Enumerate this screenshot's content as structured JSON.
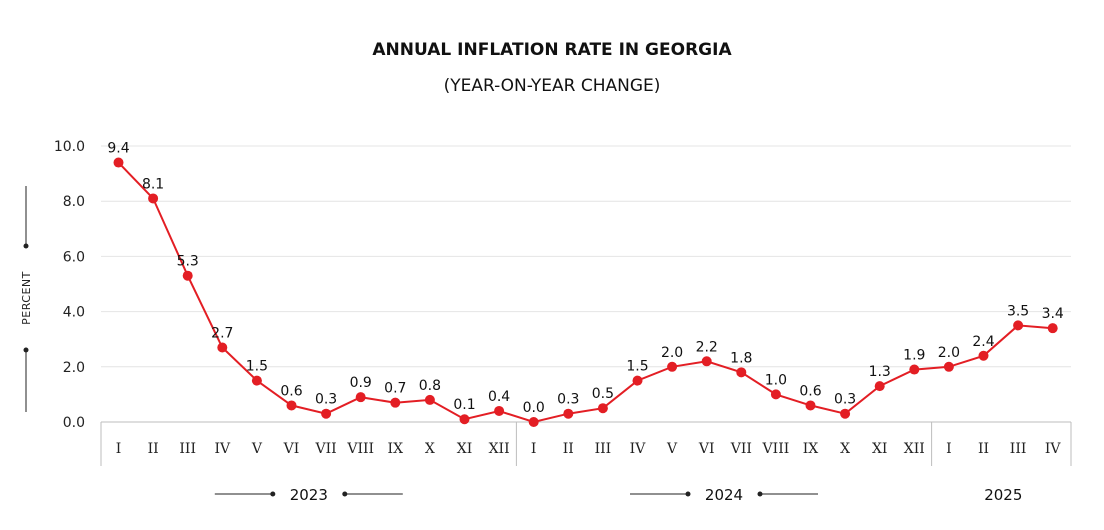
{
  "chart_data": {
    "type": "line",
    "title": "ANNUAL INFLATION RATE IN GEORGIA",
    "subtitle": "(YEAR-ON-YEAR CHANGE)",
    "ylabel": "PERCENT",
    "ylim": [
      0,
      10
    ],
    "yticks": [
      "0.0",
      "2.0",
      "4.0",
      "6.0",
      "8.0",
      "10.0"
    ],
    "grid": true,
    "line_color": "#e31e24",
    "years": [
      {
        "label": "2023",
        "months": 12
      },
      {
        "label": "2024",
        "months": 12
      },
      {
        "label": "2025",
        "months": 4
      }
    ],
    "categories": [
      "I",
      "II",
      "III",
      "IV",
      "V",
      "VI",
      "VII",
      "VIII",
      "IX",
      "X",
      "XI",
      "XII",
      "I",
      "II",
      "III",
      "IV",
      "V",
      "VI",
      "VII",
      "VIII",
      "IX",
      "X",
      "XI",
      "XII",
      "I",
      "II",
      "III",
      "IV"
    ],
    "values": [
      9.4,
      8.1,
      5.3,
      2.7,
      1.5,
      0.6,
      0.3,
      0.9,
      0.7,
      0.8,
      0.1,
      0.4,
      0.0,
      0.3,
      0.5,
      1.5,
      2.0,
      2.2,
      1.8,
      1.0,
      0.6,
      0.3,
      1.3,
      1.9,
      2.0,
      2.4,
      3.5,
      3.4
    ],
    "value_labels": [
      "9.4",
      "8.1",
      "5.3",
      "2.7",
      "1.5",
      "0.6",
      "0.3",
      "0.9",
      "0.7",
      "0.8",
      "0.1",
      "0.4",
      "0.0",
      "0.3",
      "0.5",
      "1.5",
      "2.0",
      "2.2",
      "1.8",
      "1.0",
      "0.6",
      "0.3",
      "1.3",
      "1.9",
      "2.0",
      "2.4",
      "3.5",
      "3.4"
    ]
  }
}
